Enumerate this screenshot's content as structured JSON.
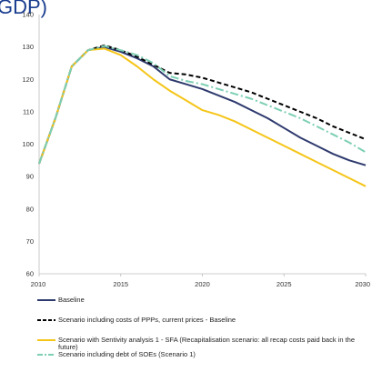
{
  "chart_data": {
    "type": "line",
    "title_fragment": "GDP)",
    "x": [
      2010,
      2011,
      2012,
      2013,
      2014,
      2015,
      2016,
      2017,
      2018,
      2019,
      2020,
      2021,
      2022,
      2023,
      2024,
      2025,
      2026,
      2027,
      2028,
      2029,
      2030
    ],
    "xticks": [
      "2010",
      "2015",
      "2020",
      "2025",
      "2030"
    ],
    "xtick_values": [
      2010,
      2015,
      2020,
      2025,
      2030
    ],
    "yticks": [
      "60",
      "70",
      "80",
      "90",
      "100",
      "110",
      "120",
      "130",
      "140"
    ],
    "ytick_values": [
      60,
      70,
      80,
      90,
      100,
      110,
      120,
      130,
      140
    ],
    "xlim": [
      2010,
      2030
    ],
    "ylim": [
      60,
      140
    ],
    "legend_position": "bottom",
    "series": [
      {
        "name": "Baseline",
        "color": "#2e3a6e",
        "style": "solid",
        "values": [
          94,
          108,
          124,
          129,
          130,
          128.5,
          126.5,
          124,
          120,
          118.5,
          117,
          115,
          113,
          110.5,
          108,
          105,
          102,
          99.5,
          97,
          95,
          93.5
        ]
      },
      {
        "name": "Scenario including costs of PPPs, current prices - Baseline",
        "color": "#000000",
        "style": "dashed",
        "values": [
          94,
          108,
          124,
          129,
          130.5,
          129,
          127,
          124.5,
          122,
          121.5,
          120.5,
          119,
          117.5,
          116,
          114,
          112,
          110,
          108,
          105.5,
          103.5,
          101.5
        ]
      },
      {
        "name": "Scenario with Sentivity analysis 1 - SFA (Recapitalisation scenario: all recap costs paid back in the future)",
        "color": "#f5c518",
        "style": "solid",
        "values": [
          94,
          108,
          124,
          129,
          129.5,
          127.5,
          124,
          120,
          116.5,
          113.5,
          110.5,
          109,
          107,
          104.5,
          102,
          99.5,
          97,
          94.5,
          92,
          89.5,
          87
        ]
      },
      {
        "name": "Scenario including debt of SOEs (Scenario 1)",
        "color": "#7ccfb4",
        "style": "dashdot",
        "values": [
          94,
          108,
          124,
          129,
          130.3,
          129,
          127.5,
          125,
          121,
          119.5,
          118.5,
          117,
          115.5,
          114,
          112,
          110,
          108,
          105.5,
          103,
          100.5,
          97.5
        ]
      }
    ]
  }
}
